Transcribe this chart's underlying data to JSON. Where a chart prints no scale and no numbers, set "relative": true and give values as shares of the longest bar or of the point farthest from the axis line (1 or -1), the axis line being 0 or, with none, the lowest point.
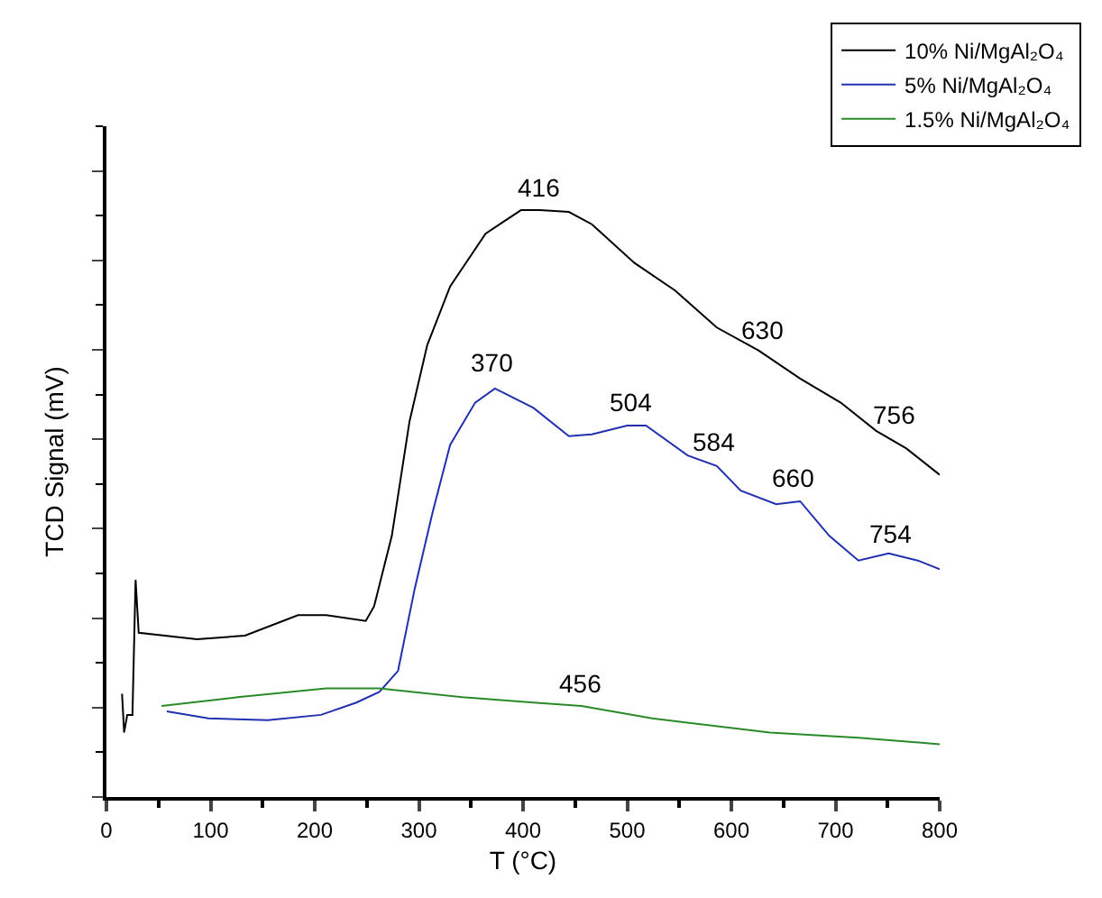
{
  "chart_data": {
    "type": "line",
    "xlabel": "T (°C)",
    "ylabel": "TCD Signal (mV)",
    "relative": true,
    "xlim": [
      0,
      800
    ],
    "xticks": [
      0,
      {
        "value": 50,
        "label": null
      },
      100,
      {
        "value": 150,
        "label": null
      },
      200,
      {
        "value": 250,
        "label": null
      },
      300,
      {
        "value": 350,
        "label": null
      },
      400,
      {
        "value": 450,
        "label": null
      },
      500,
      {
        "value": 550,
        "label": null
      },
      600,
      {
        "value": 650,
        "label": null
      },
      700,
      {
        "value": 750,
        "label": null
      },
      800
    ],
    "legend": "top right",
    "marker": "none",
    "line_style": "solid",
    "series": [
      {
        "name": "10% Ni/MgAl₂O₄",
        "color": "#000000",
        "x": [
          15,
          17,
          20,
          25,
          28,
          31,
          87,
          133,
          184,
          211,
          249,
          257,
          274,
          291,
          308,
          330,
          364,
          398,
          416,
          444,
          466,
          507,
          546,
          586,
          626,
          666,
          705,
          739,
          768,
          800
        ],
        "values": [
          0.176,
          0.11,
          0.14,
          0.14,
          0.37,
          0.28,
          0.269,
          0.275,
          0.31,
          0.31,
          0.3,
          0.325,
          0.445,
          0.64,
          0.77,
          0.87,
          0.96,
          1.0,
          1.0,
          0.997,
          0.976,
          0.91,
          0.863,
          0.8,
          0.761,
          0.713,
          0.672,
          0.624,
          0.594,
          0.549
        ]
      },
      {
        "name": "5% Ni/MgAl₂O₄",
        "color": "#2030b0",
        "x": [
          58,
          98,
          155,
          206,
          240,
          262,
          280,
          296,
          313,
          330,
          354,
          373,
          410,
          444,
          466,
          500,
          518,
          558,
          586,
          609,
          643,
          666,
          694,
          722,
          751,
          779,
          800
        ],
        "values": [
          0.146,
          0.134,
          0.131,
          0.14,
          0.161,
          0.179,
          0.215,
          0.355,
          0.484,
          0.6,
          0.672,
          0.696,
          0.663,
          0.615,
          0.618,
          0.633,
          0.633,
          0.582,
          0.564,
          0.522,
          0.499,
          0.504,
          0.445,
          0.403,
          0.415,
          0.403,
          0.388
        ]
      },
      {
        "name": "1.5% Ni/MgAl₂O₄",
        "color": "#2a8a2a",
        "x": [
          53,
          126,
          211,
          262,
          342,
          410,
          456,
          524,
          637,
          722,
          800
        ],
        "values": [
          0.155,
          0.17,
          0.185,
          0.185,
          0.17,
          0.161,
          0.155,
          0.134,
          0.11,
          0.101,
          0.09
        ]
      }
    ],
    "annotations": [
      {
        "text": "416",
        "x": 416,
        "y": 1.0
      },
      {
        "text": "630",
        "x": 630,
        "y": 0.756
      },
      {
        "text": "756",
        "x": 756,
        "y": 0.61
      },
      {
        "text": "370",
        "x": 370,
        "y": 0.7
      },
      {
        "text": "504",
        "x": 504,
        "y": 0.633
      },
      {
        "text": "584",
        "x": 584,
        "y": 0.565
      },
      {
        "text": "660",
        "x": 660,
        "y": 0.505
      },
      {
        "text": "754",
        "x": 754,
        "y": 0.41
      },
      {
        "text": "456",
        "x": 456,
        "y": 0.155
      }
    ]
  }
}
